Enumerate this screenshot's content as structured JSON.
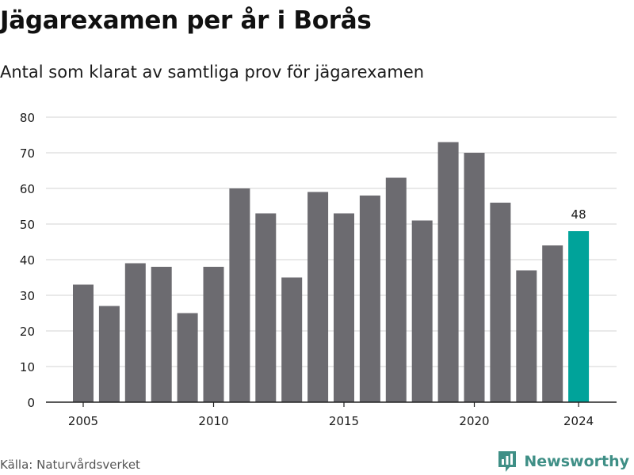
{
  "header": {
    "title": "Jägarexamen per år i Borås",
    "subtitle": "Antal som klarat av samtliga prov för jägarexamen"
  },
  "footer": {
    "source": "Källa: Naturvårdsverket",
    "brand": "Newsworthy",
    "brand_icon": "newsworthy-logo-icon"
  },
  "colors": {
    "bar": "#6c6b70",
    "highlight": "#00a39a",
    "grid": "#dcdcdc",
    "axis": "#222222",
    "text": "#1a1a1a",
    "brand": "#3f8f86"
  },
  "chart_data": {
    "type": "bar",
    "title": "Jägarexamen per år i Borås",
    "subtitle": "Antal som klarat av samtliga prov för jägarexamen",
    "categories": [
      2005,
      2006,
      2007,
      2008,
      2009,
      2010,
      2011,
      2012,
      2013,
      2014,
      2015,
      2016,
      2017,
      2018,
      2019,
      2020,
      2021,
      2022,
      2023,
      2024
    ],
    "values": [
      33,
      27,
      39,
      38,
      25,
      38,
      60,
      53,
      35,
      59,
      53,
      58,
      63,
      51,
      73,
      70,
      56,
      37,
      44,
      48
    ],
    "highlight": {
      "category": 2024,
      "label": "48"
    },
    "x_ticks": [
      "2005",
      "2010",
      "2015",
      "2020",
      "2024"
    ],
    "y_ticks": [
      "0",
      "10",
      "20",
      "30",
      "40",
      "50",
      "60",
      "70",
      "80"
    ],
    "ylim": [
      0,
      80
    ],
    "grid": true,
    "xlabel": "",
    "ylabel": ""
  }
}
